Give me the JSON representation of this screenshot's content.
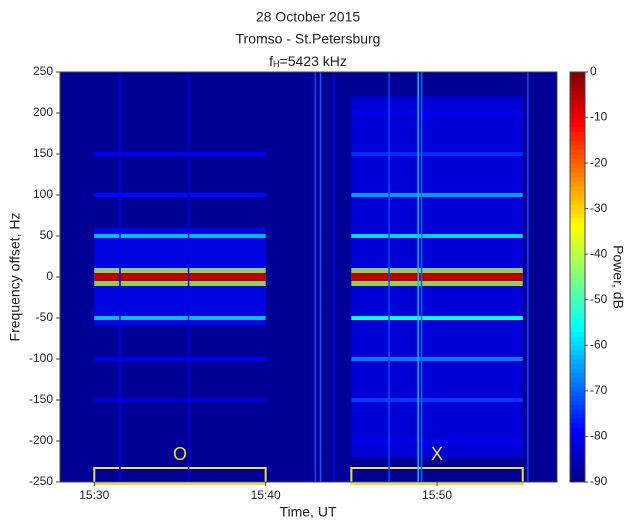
{
  "chart_data": {
    "type": "spectrogram",
    "title": [
      "28 October 2015",
      "Tromso - St.Petersburg"
    ],
    "subtitle": {
      "symbol": "f",
      "subscript": "H",
      "text": "=5423 kHz"
    },
    "x_label": "Time, UT",
    "y_label": "Frequency offset, Hz",
    "colorbar_label": "Power, dB",
    "colormap": "jet",
    "xlim": [
      928,
      957
    ],
    "xticks": [
      {
        "value": 930,
        "label": "15:30"
      },
      {
        "value": 940,
        "label": "15:40"
      },
      {
        "value": 950,
        "label": "15:50"
      }
    ],
    "ylim": [
      -250,
      250
    ],
    "yticks": [
      -250,
      -200,
      -150,
      -100,
      -50,
      0,
      50,
      100,
      150,
      200,
      250
    ],
    "clim": [
      -90,
      0
    ],
    "cticks": [
      -90,
      -80,
      -70,
      -60,
      -50,
      -40,
      -30,
      -20,
      -10,
      0
    ],
    "background": -88,
    "segments": [
      {
        "name": "O",
        "x": [
          930,
          940
        ],
        "spread": [
          -60,
          60
        ],
        "spread_power": -78,
        "lines": {
          "freq": [
            150,
            100,
            50,
            0,
            -50,
            -100,
            -150
          ],
          "power": [
            -80,
            -78,
            -62,
            -5,
            -62,
            -80,
            -82
          ]
        }
      },
      {
        "name": "X",
        "x": [
          945,
          955
        ],
        "spread": [
          -220,
          220
        ],
        "spread_power": -80,
        "lines": {
          "freq": [
            200,
            150,
            100,
            50,
            0,
            -50,
            -100,
            -150,
            -200
          ],
          "power": [
            -80,
            -75,
            -65,
            -60,
            -5,
            -55,
            -68,
            -74,
            -80
          ]
        }
      }
    ],
    "vertical_lines": {
      "x": [
        931.5,
        935.5,
        942.9,
        943.2,
        944.0,
        947.2,
        948.9,
        949.1,
        955.3
      ],
      "power": [
        -80,
        -82,
        -72,
        -70,
        -80,
        -72,
        -62,
        -70,
        -72
      ]
    }
  }
}
